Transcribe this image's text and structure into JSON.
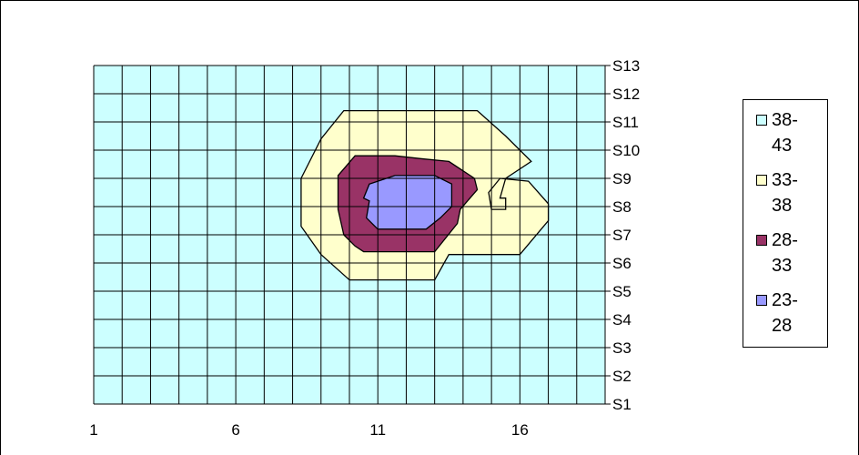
{
  "chart_data": {
    "type": "surface-contour",
    "x_ticks": [
      "1",
      "6",
      "11",
      "16"
    ],
    "y_series_labels": [
      "S1",
      "S2",
      "S3",
      "S4",
      "S5",
      "S6",
      "S7",
      "S8",
      "S9",
      "S10",
      "S11",
      "S12",
      "S13"
    ],
    "x_range": [
      1,
      19
    ],
    "grid": true,
    "legend_position": "right",
    "bands": [
      {
        "name": "38-43",
        "label_line1": "38-",
        "label_line2": "43",
        "color": "#ccffff"
      },
      {
        "name": "33-38",
        "label_line1": "33-",
        "label_line2": "38",
        "color": "#ffffcc"
      },
      {
        "name": "28-33",
        "label_line1": "28-",
        "label_line2": "33",
        "color": "#993366"
      },
      {
        "name": "23-28",
        "label_line1": "23-",
        "label_line2": "28",
        "color": "#9999ff"
      }
    ],
    "contours": [
      {
        "band": "33-38",
        "points": [
          [
            9.8,
            11.4
          ],
          [
            14.5,
            11.4
          ],
          [
            15.5,
            10.5
          ],
          [
            16.4,
            9.6
          ],
          [
            15.5,
            9.0
          ],
          [
            15.3,
            8.3
          ],
          [
            15.5,
            8.3
          ],
          [
            15.5,
            7.9
          ],
          [
            15.0,
            7.9
          ],
          [
            14.9,
            8.5
          ],
          [
            15.3,
            9.0
          ],
          [
            16.3,
            8.9
          ],
          [
            17.0,
            8.1
          ],
          [
            17.0,
            7.5
          ],
          [
            16.0,
            6.3
          ],
          [
            13.5,
            6.3
          ],
          [
            13.0,
            5.4
          ],
          [
            10.0,
            5.4
          ],
          [
            9.0,
            6.3
          ],
          [
            8.3,
            7.3
          ],
          [
            8.3,
            9.0
          ],
          [
            9.0,
            10.4
          ]
        ]
      },
      {
        "band": "28-33",
        "points": [
          [
            10.2,
            9.8
          ],
          [
            11.6,
            9.8
          ],
          [
            12.5,
            9.7
          ],
          [
            13.5,
            9.6
          ],
          [
            14.4,
            9.0
          ],
          [
            14.5,
            8.6
          ],
          [
            13.9,
            7.9
          ],
          [
            13.8,
            7.4
          ],
          [
            13.0,
            6.4
          ],
          [
            10.5,
            6.4
          ],
          [
            10.2,
            6.6
          ],
          [
            9.8,
            7.0
          ],
          [
            9.6,
            7.9
          ],
          [
            9.6,
            9.1
          ]
        ]
      },
      {
        "band": "23-28",
        "points": [
          [
            10.7,
            8.8
          ],
          [
            11.6,
            9.1
          ],
          [
            13.0,
            9.1
          ],
          [
            13.6,
            8.8
          ],
          [
            13.6,
            8.0
          ],
          [
            13.2,
            7.6
          ],
          [
            12.7,
            7.2
          ],
          [
            11.0,
            7.2
          ],
          [
            10.6,
            7.6
          ],
          [
            10.7,
            8.2
          ],
          [
            10.5,
            8.3
          ]
        ]
      }
    ]
  }
}
